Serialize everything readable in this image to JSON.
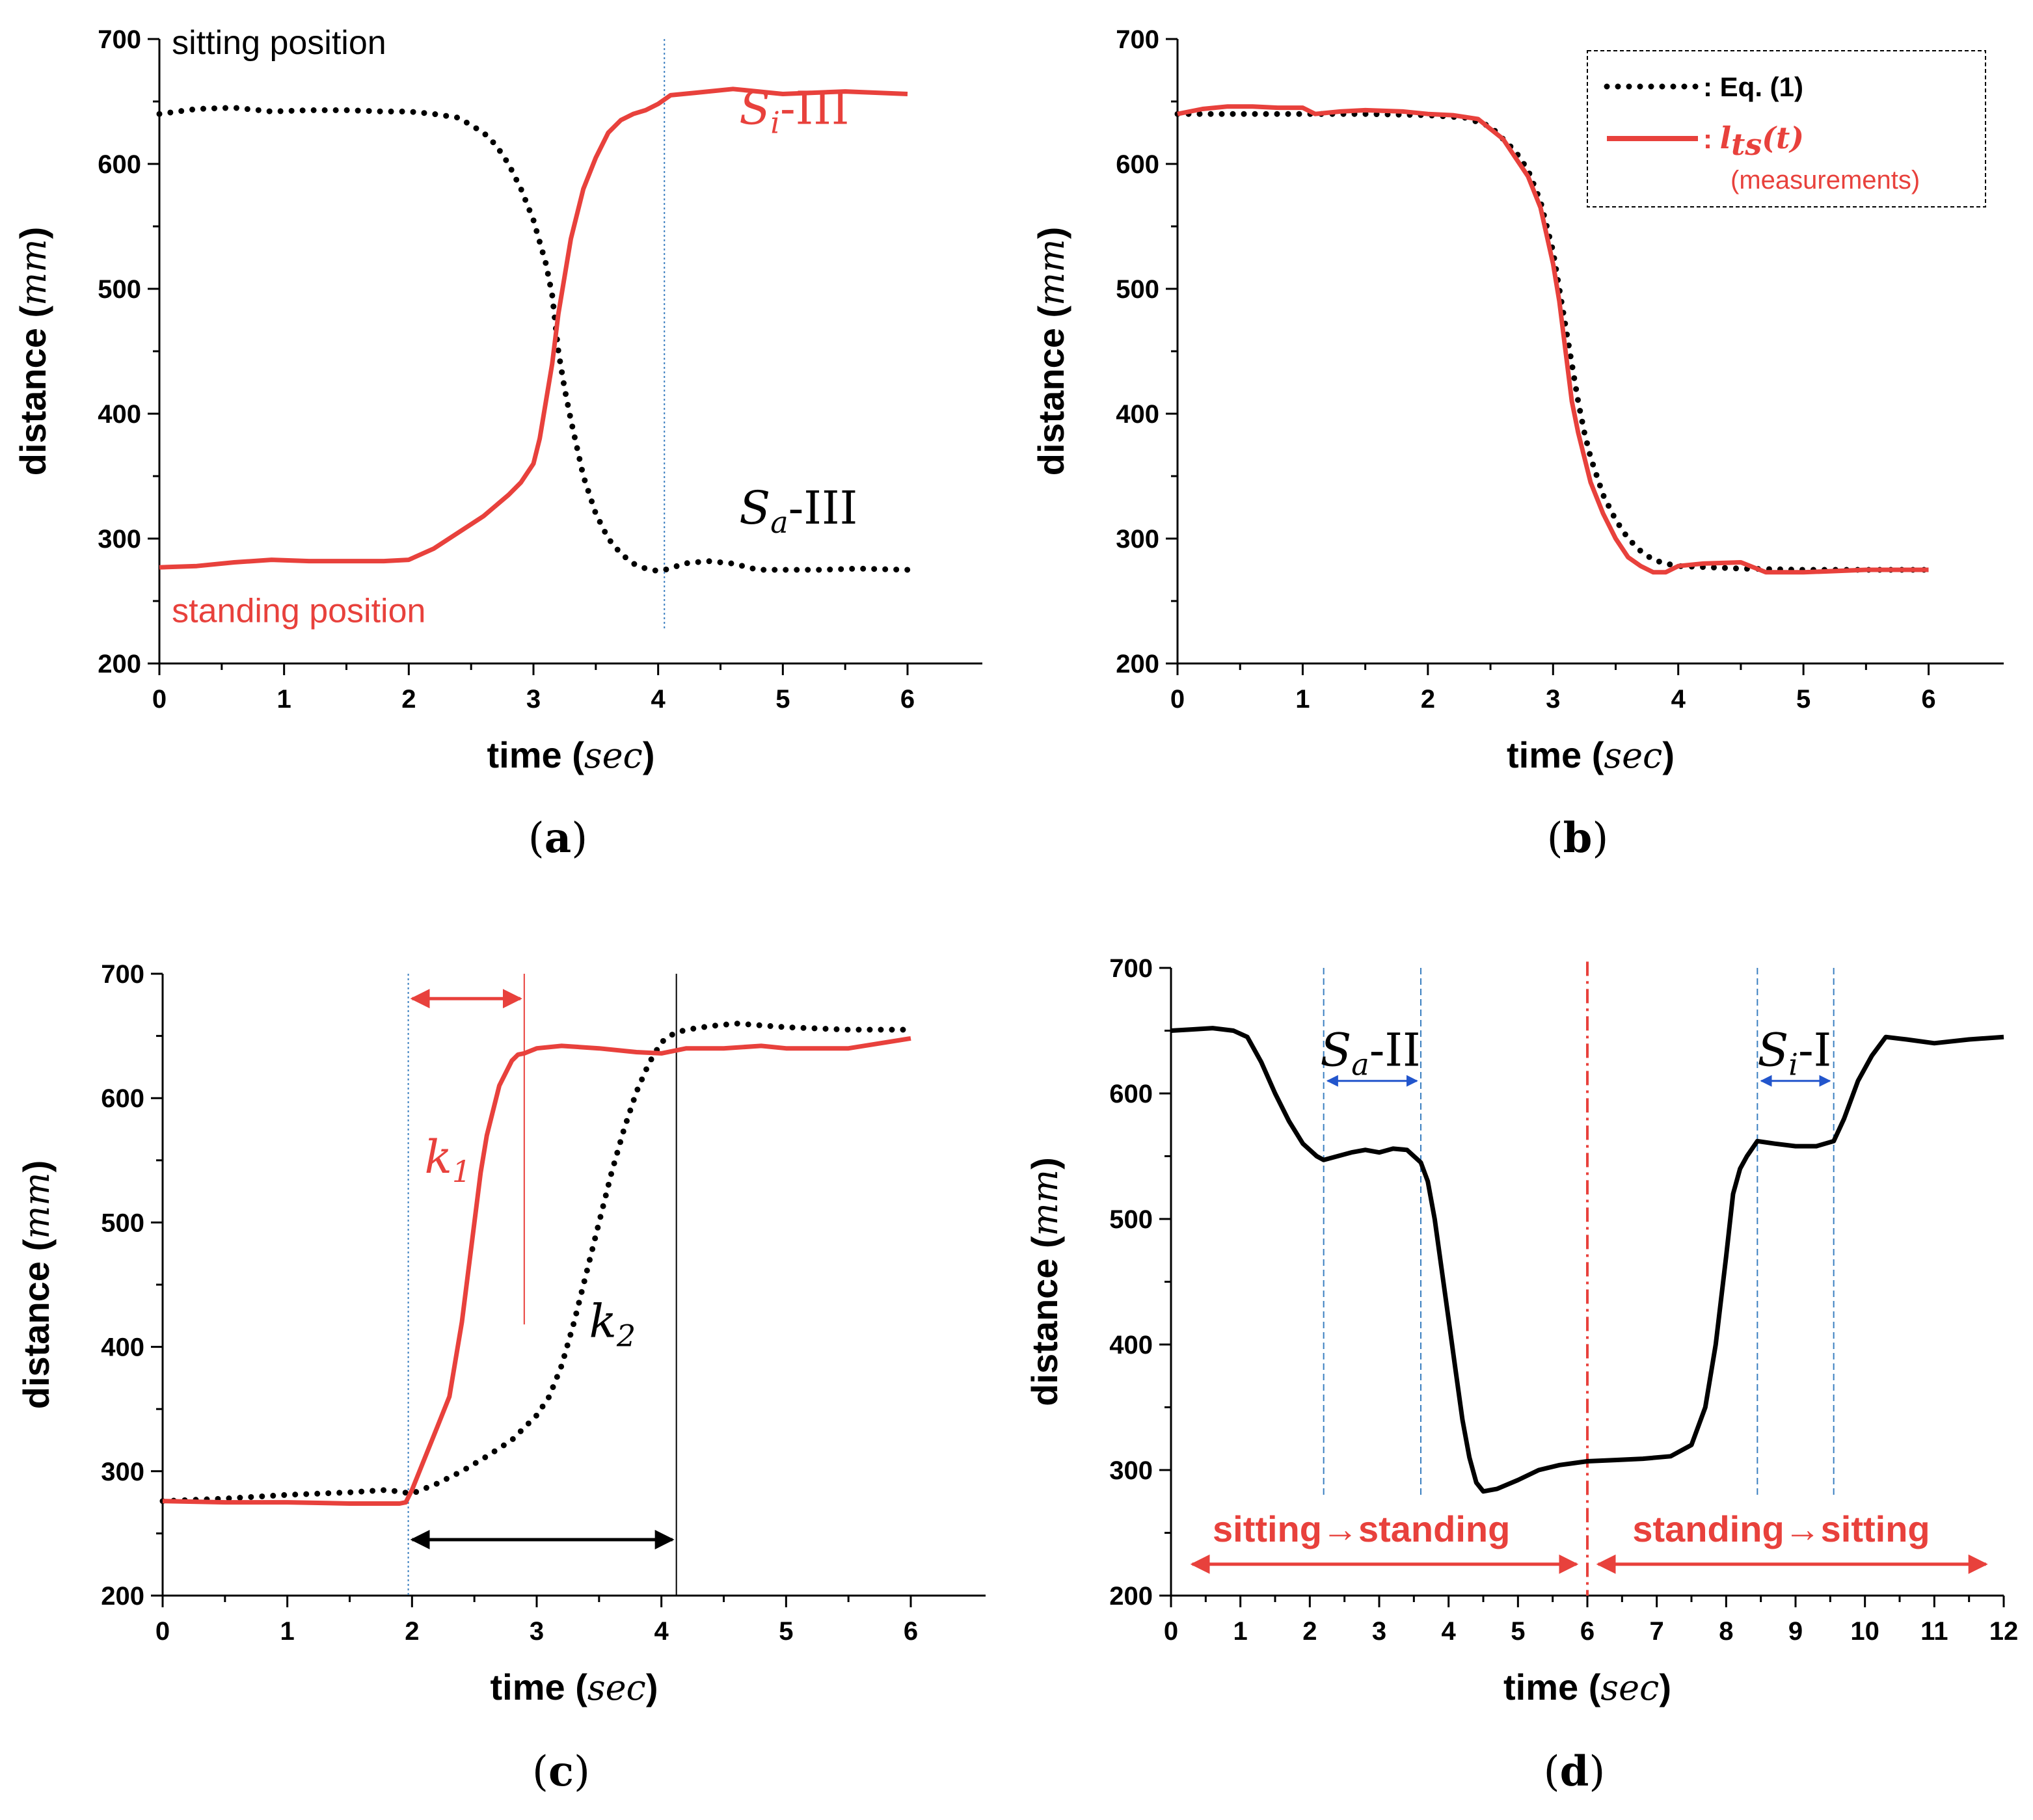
{
  "colors": {
    "red": "#e8413c",
    "black": "#000000",
    "blue": "#2255cc",
    "vline": "#3a7fc0"
  },
  "chart_data": [
    {
      "id": "a",
      "type": "line",
      "panel_label": "a",
      "xlabel": "time",
      "xunit": "sec",
      "ylabel": "distance",
      "yunit": "mm",
      "xlim": [
        0,
        6.6
      ],
      "ylim": [
        200,
        700
      ],
      "xticks": [
        0,
        1,
        2,
        3,
        4,
        5,
        6
      ],
      "yticks": [
        200,
        300,
        400,
        500,
        600,
        700
      ],
      "series": [
        {
          "name": "Sa-III",
          "style": "dotted",
          "color": "black",
          "x": [
            0,
            0.3,
            0.6,
            0.9,
            1.2,
            1.5,
            1.8,
            2.0,
            2.2,
            2.4,
            2.6,
            2.7,
            2.8,
            2.9,
            3.0,
            3.1,
            3.15,
            3.2,
            3.25,
            3.3,
            3.4,
            3.5,
            3.6,
            3.7,
            3.8,
            3.9,
            4.0,
            4.1,
            4.2,
            4.4,
            4.6,
            4.8,
            5.0,
            5.3,
            5.6,
            6.0
          ],
          "y": [
            640,
            644,
            645,
            642,
            643,
            643,
            642,
            642,
            640,
            637,
            625,
            615,
            600,
            580,
            555,
            520,
            495,
            450,
            420,
            395,
            350,
            320,
            300,
            288,
            280,
            276,
            274,
            276,
            280,
            282,
            280,
            275,
            275,
            275,
            276,
            275
          ]
        },
        {
          "name": "Si-III",
          "style": "solid",
          "color": "red",
          "x": [
            0,
            0.3,
            0.6,
            0.9,
            1.2,
            1.5,
            1.8,
            2.0,
            2.2,
            2.4,
            2.6,
            2.8,
            2.9,
            3.0,
            3.05,
            3.1,
            3.15,
            3.2,
            3.25,
            3.3,
            3.4,
            3.5,
            3.6,
            3.7,
            3.8,
            3.9,
            4.0,
            4.1,
            4.3,
            4.6,
            5.0,
            5.5,
            6.0
          ],
          "y": [
            277,
            278,
            281,
            283,
            282,
            282,
            282,
            283,
            292,
            305,
            318,
            335,
            345,
            360,
            380,
            410,
            440,
            480,
            510,
            540,
            580,
            605,
            625,
            635,
            640,
            643,
            648,
            655,
            657,
            660,
            656,
            658,
            656
          ]
        }
      ],
      "vlines": [
        {
          "x": 4.05,
          "from": 228,
          "to": 700,
          "style": "dotted",
          "color": "vline"
        }
      ],
      "annotations": [
        {
          "kind": "plain",
          "text": "sitting position",
          "color": "black",
          "x": 0.1,
          "y": 688
        },
        {
          "kind": "plain",
          "text": "standing position",
          "color": "red",
          "x": 0.1,
          "y": 233
        },
        {
          "kind": "math",
          "base": "S",
          "sub": "i",
          "suffix": "-III",
          "color": "red",
          "x": 4.65,
          "y": 632
        },
        {
          "kind": "math",
          "base": "S",
          "sub": "a",
          "suffix": "-III",
          "color": "black",
          "x": 4.65,
          "y": 312
        }
      ]
    },
    {
      "id": "b",
      "type": "line",
      "panel_label": "b",
      "xlabel": "time",
      "xunit": "sec",
      "ylabel": "distance",
      "yunit": "mm",
      "xlim": [
        0,
        6.6
      ],
      "ylim": [
        200,
        700
      ],
      "xticks": [
        0,
        1,
        2,
        3,
        4,
        5,
        6
      ],
      "yticks": [
        200,
        300,
        400,
        500,
        600,
        700
      ],
      "series": [
        {
          "name": ": Eq. (1)",
          "style": "dotted",
          "color": "black",
          "x": [
            0,
            0.5,
            1.0,
            1.5,
            2.0,
            2.3,
            2.5,
            2.7,
            2.8,
            2.9,
            3.0,
            3.1,
            3.15,
            3.2,
            3.25,
            3.3,
            3.4,
            3.5,
            3.6,
            3.7,
            3.8,
            3.9,
            4.0,
            4.5,
            5.0,
            5.5,
            6.0
          ],
          "y": [
            640,
            640,
            640,
            640,
            639,
            637,
            630,
            610,
            595,
            570,
            530,
            470,
            440,
            410,
            385,
            365,
            335,
            315,
            300,
            290,
            283,
            280,
            278,
            276,
            275,
            275,
            275
          ]
        },
        {
          "name": "lts(t) (measurements)",
          "style": "solid",
          "color": "red",
          "x": [
            0,
            0.2,
            0.4,
            0.6,
            0.8,
            1.0,
            1.1,
            1.3,
            1.5,
            1.8,
            2.0,
            2.2,
            2.4,
            2.6,
            2.7,
            2.8,
            2.9,
            3.0,
            3.05,
            3.1,
            3.15,
            3.2,
            3.25,
            3.3,
            3.4,
            3.5,
            3.6,
            3.7,
            3.8,
            3.9,
            4.0,
            4.2,
            4.5,
            4.7,
            5.0,
            5.5,
            6.0
          ],
          "y": [
            640,
            644,
            646,
            646,
            645,
            645,
            640,
            642,
            643,
            642,
            640,
            639,
            636,
            620,
            605,
            590,
            565,
            520,
            490,
            450,
            410,
            385,
            365,
            345,
            320,
            300,
            285,
            278,
            273,
            273,
            278,
            280,
            281,
            273,
            273,
            275,
            275
          ]
        }
      ],
      "legend": {
        "position": "top-right",
        "entries": [
          {
            "label": ": Eq. (1)"
          },
          {
            "label_base": "l",
            "label_sub": "ts",
            "label_arg": "(t)",
            "label_prefix": ": ",
            "label_note": "(measurements)"
          }
        ]
      }
    },
    {
      "id": "c",
      "type": "line",
      "panel_label": "c",
      "xlabel": "time",
      "xunit": "sec",
      "ylabel": "distance",
      "yunit": "mm",
      "xlim": [
        0,
        6.6
      ],
      "ylim": [
        200,
        700
      ],
      "xticks": [
        0,
        1,
        2,
        3,
        4,
        5,
        6
      ],
      "yticks": [
        200,
        300,
        400,
        500,
        600,
        700
      ],
      "series": [
        {
          "name": "k2",
          "style": "dotted",
          "color": "black",
          "x": [
            0,
            0.5,
            1.0,
            1.5,
            1.8,
            2.0,
            2.2,
            2.4,
            2.6,
            2.8,
            2.9,
            3.0,
            3.1,
            3.2,
            3.3,
            3.4,
            3.5,
            3.6,
            3.7,
            3.8,
            3.9,
            4.0,
            4.1,
            4.2,
            4.4,
            4.6,
            5.0,
            5.5,
            6.0
          ],
          "y": [
            276,
            278,
            281,
            283,
            285,
            282,
            290,
            300,
            312,
            325,
            335,
            345,
            360,
            385,
            420,
            460,
            500,
            540,
            575,
            605,
            628,
            645,
            652,
            655,
            658,
            660,
            657,
            655,
            655
          ]
        },
        {
          "name": "k1",
          "style": "solid",
          "color": "red",
          "x": [
            0,
            0.5,
            1.0,
            1.5,
            1.9,
            1.95,
            2.0,
            2.1,
            2.2,
            2.3,
            2.35,
            2.4,
            2.45,
            2.5,
            2.55,
            2.6,
            2.7,
            2.8,
            2.85,
            2.9,
            3.0,
            3.2,
            3.5,
            3.8,
            4.0,
            4.2,
            4.5,
            4.8,
            5.0,
            5.5,
            6.0
          ],
          "y": [
            276,
            275,
            275,
            274,
            274,
            275,
            285,
            310,
            335,
            360,
            390,
            420,
            460,
            500,
            540,
            570,
            610,
            630,
            635,
            636,
            640,
            642,
            640,
            637,
            636,
            640,
            640,
            642,
            640,
            640,
            648
          ]
        }
      ],
      "vlines": [
        {
          "x": 1.97,
          "from": 200,
          "to": 700,
          "style": "dotted",
          "color": "vline"
        },
        {
          "x": 2.9,
          "from": 418,
          "to": 700,
          "style": "solid",
          "color": "red"
        },
        {
          "x": 4.12,
          "from": 200,
          "to": 700,
          "style": "solid",
          "color": "black"
        }
      ],
      "arrows": [
        {
          "x1": 1.97,
          "x2": 2.9,
          "y": 680,
          "color": "red"
        },
        {
          "x1": 1.97,
          "x2": 4.12,
          "y": 245,
          "color": "black"
        }
      ],
      "annotations": [
        {
          "kind": "math",
          "base": "k",
          "sub": "1",
          "suffix": "",
          "color": "red",
          "x": 2.1,
          "y": 540
        },
        {
          "kind": "math",
          "base": "k",
          "sub": "2",
          "suffix": "",
          "color": "black",
          "x": 3.42,
          "y": 408
        }
      ]
    },
    {
      "id": "d",
      "type": "line",
      "panel_label": "d",
      "xlabel": "time",
      "xunit": "sec",
      "ylabel": "distance",
      "yunit": "mm",
      "xlim": [
        0,
        12
      ],
      "ylim": [
        200,
        700
      ],
      "xticks": [
        0,
        1,
        2,
        3,
        4,
        5,
        6,
        7,
        8,
        9,
        10,
        11,
        12
      ],
      "yticks": [
        200,
        300,
        400,
        500,
        600,
        700
      ],
      "series": [
        {
          "name": "distance",
          "style": "solid",
          "color": "black",
          "x": [
            0,
            0.3,
            0.6,
            0.9,
            1.1,
            1.3,
            1.5,
            1.7,
            1.9,
            2.1,
            2.2,
            2.4,
            2.6,
            2.8,
            3.0,
            3.2,
            3.4,
            3.6,
            3.7,
            3.8,
            3.9,
            4.0,
            4.1,
            4.2,
            4.3,
            4.4,
            4.5,
            4.7,
            5.0,
            5.3,
            5.6,
            6.0,
            6.4,
            6.8,
            7.2,
            7.5,
            7.7,
            7.85,
            8.0,
            8.1,
            8.2,
            8.3,
            8.45,
            8.7,
            9.0,
            9.3,
            9.55,
            9.7,
            9.9,
            10.1,
            10.3,
            10.6,
            11.0,
            11.5,
            12.0
          ],
          "y": [
            650,
            651,
            652,
            650,
            645,
            625,
            600,
            578,
            560,
            550,
            547,
            550,
            553,
            555,
            553,
            556,
            555,
            545,
            530,
            500,
            460,
            420,
            380,
            340,
            310,
            290,
            283,
            285,
            292,
            300,
            304,
            307,
            308,
            309,
            311,
            320,
            350,
            400,
            470,
            520,
            540,
            550,
            562,
            560,
            558,
            558,
            562,
            580,
            610,
            630,
            645,
            643,
            640,
            643,
            645
          ]
        }
      ],
      "vlines": [
        {
          "x": 2.2,
          "from": 280,
          "to": 700,
          "style": "dashed",
          "color": "vline"
        },
        {
          "x": 3.6,
          "from": 280,
          "to": 700,
          "style": "dashed",
          "color": "vline"
        },
        {
          "x": 8.45,
          "from": 280,
          "to": 700,
          "style": "dashed",
          "color": "vline"
        },
        {
          "x": 9.55,
          "from": 280,
          "to": 700,
          "style": "dashed",
          "color": "vline"
        },
        {
          "x": 6.0,
          "from": 200,
          "to": 705,
          "style": "dashdot",
          "color": "red"
        }
      ],
      "arrows": [
        {
          "x1": 2.2,
          "x2": 3.6,
          "y": 610,
          "color": "blue"
        },
        {
          "x1": 8.45,
          "x2": 9.55,
          "y": 610,
          "color": "blue"
        },
        {
          "x1": 0.25,
          "x2": 5.9,
          "y": 225,
          "color": "red"
        },
        {
          "x1": 6.1,
          "x2": 11.8,
          "y": 225,
          "color": "red"
        }
      ],
      "annotations": [
        {
          "kind": "math",
          "base": "S",
          "sub": "a",
          "suffix": "-II",
          "color": "black",
          "x": 2.15,
          "y": 622
        },
        {
          "kind": "math",
          "base": "S",
          "sub": "i",
          "suffix": "-I",
          "color": "black",
          "x": 8.45,
          "y": 622
        },
        {
          "kind": "bold",
          "text": "sitting→standing",
          "color": "red",
          "x": 0.6,
          "y": 243
        },
        {
          "kind": "bold",
          "text": "standing→sitting",
          "color": "red",
          "x": 6.65,
          "y": 243
        }
      ]
    }
  ]
}
